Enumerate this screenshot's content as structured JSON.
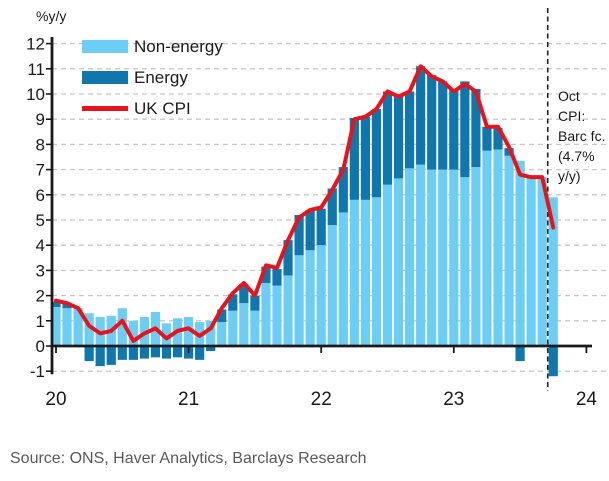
{
  "unit_label": "%y/y",
  "source": "Source: ONS, Haver Analytics, Barclays Research",
  "colors": {
    "non_energy": "#6dcef5",
    "energy": "#1076ae",
    "cpi_line": "#e8141c",
    "grid": "#c8c8c8",
    "axis": "#1a1a1a",
    "forecast_line": "#222222",
    "source_text": "#595959"
  },
  "legend": {
    "items": [
      {
        "label": "Non-energy",
        "type": "bar"
      },
      {
        "label": "Energy",
        "type": "bar"
      },
      {
        "label": "UK CPI",
        "type": "line"
      }
    ]
  },
  "chart_data": {
    "type": "bar",
    "subtype": "stacked-bars-with-line",
    "title": "",
    "ylabel": "%y/y",
    "ylim": [
      -1,
      12
    ],
    "y_ticks": [
      12,
      11,
      10,
      9,
      8,
      7,
      6,
      5,
      4,
      3,
      2,
      1,
      0,
      -1
    ],
    "x_ticks": [
      {
        "label": "20",
        "month_index": 0
      },
      {
        "label": "21",
        "month_index": 12
      },
      {
        "label": "22",
        "month_index": 24
      },
      {
        "label": "23",
        "month_index": 36
      },
      {
        "label": "24",
        "month_index": 48
      }
    ],
    "grid": "horizontal-dashed",
    "legend_position": "top-left",
    "categories": [
      "Jan 20",
      "Feb 20",
      "Mar 20",
      "Apr 20",
      "May 20",
      "Jun 20",
      "Jul 20",
      "Aug 20",
      "Sep 20",
      "Oct 20",
      "Nov 20",
      "Dec 20",
      "Jan 21",
      "Feb 21",
      "Mar 21",
      "Apr 21",
      "May 21",
      "Jun 21",
      "Jul 21",
      "Aug 21",
      "Sep 21",
      "Oct 21",
      "Nov 21",
      "Dec 21",
      "Jan 22",
      "Feb 22",
      "Mar 22",
      "Apr 22",
      "May 22",
      "Jun 22",
      "Jul 22",
      "Aug 22",
      "Sep 22",
      "Oct 22",
      "Nov 22",
      "Dec 22",
      "Jan 23",
      "Feb 23",
      "Mar 23",
      "Apr 23",
      "May 23",
      "Jun 23",
      "Jul 23",
      "Aug 23",
      "Sep 23",
      "Oct 23"
    ],
    "series": [
      {
        "name": "Non-energy",
        "values": [
          1.55,
          1.5,
          1.5,
          1.3,
          1.15,
          1.2,
          1.5,
          1.0,
          1.15,
          1.35,
          0.9,
          1.1,
          1.15,
          0.95,
          1.0,
          0.95,
          1.4,
          1.7,
          1.4,
          2.5,
          2.4,
          2.8,
          3.6,
          3.8,
          4.0,
          4.8,
          5.3,
          5.8,
          5.8,
          5.9,
          6.4,
          6.65,
          7.05,
          7.2,
          7.0,
          7.0,
          7.0,
          6.7,
          7.1,
          7.75,
          7.8,
          7.55,
          7.35,
          6.7,
          6.7,
          5.9
        ]
      },
      {
        "name": "Energy",
        "values": [
          0.2,
          0.2,
          0.0,
          -0.6,
          -0.8,
          -0.75,
          -0.55,
          -0.55,
          -0.5,
          -0.45,
          -0.5,
          -0.45,
          -0.5,
          -0.55,
          -0.2,
          0.5,
          0.65,
          0.75,
          0.6,
          0.65,
          0.65,
          1.4,
          1.6,
          1.6,
          1.45,
          1.45,
          1.8,
          3.25,
          3.3,
          3.5,
          3.7,
          3.25,
          3.05,
          3.9,
          3.75,
          3.5,
          3.2,
          3.8,
          3.1,
          0.95,
          0.85,
          0.3,
          -0.6,
          0.0,
          0.0,
          -1.2
        ]
      }
    ],
    "line": {
      "name": "UK CPI",
      "values": [
        1.8,
        1.7,
        1.5,
        0.8,
        0.5,
        0.6,
        1.0,
        0.2,
        0.5,
        0.7,
        0.3,
        0.6,
        0.7,
        0.4,
        0.7,
        1.5,
        2.1,
        2.5,
        2.0,
        3.2,
        3.1,
        4.2,
        5.1,
        5.4,
        5.5,
        6.2,
        7.0,
        9.0,
        9.1,
        9.4,
        10.1,
        9.9,
        10.1,
        11.1,
        10.7,
        10.5,
        10.1,
        10.4,
        10.1,
        8.7,
        8.7,
        7.9,
        6.8,
        6.7,
        6.7,
        4.7
      ]
    },
    "forecast": {
      "dashed_boundary_before_index": 45,
      "annotation_lines": [
        "Oct CPI:",
        "Barc fc.",
        "(4.7%",
        "y/y)"
      ]
    }
  }
}
